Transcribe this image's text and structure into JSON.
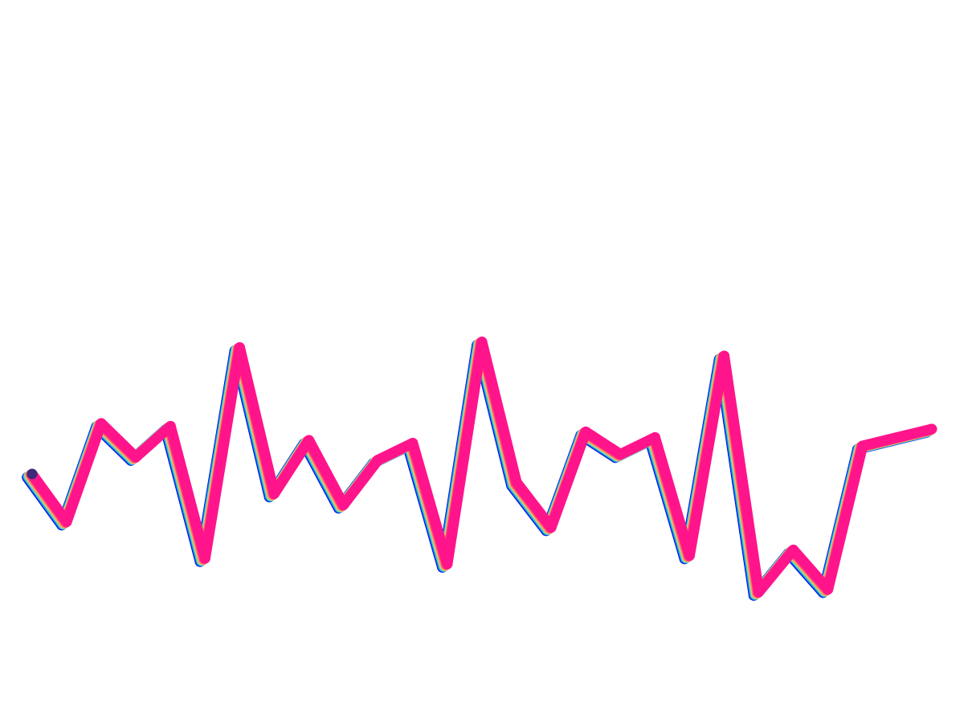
{
  "chart_data": {
    "type": "line",
    "title": "",
    "xlabel": "",
    "ylabel": "",
    "grid": false,
    "legend": "none",
    "axes_visible": false,
    "x": [
      0,
      1,
      2,
      3,
      4,
      5,
      6,
      7,
      8,
      9,
      10,
      11,
      12,
      13,
      14,
      15,
      16,
      17,
      18,
      19,
      20,
      21,
      22,
      23,
      24,
      25,
      26
    ],
    "series": [
      {
        "values": [
          40,
          23,
          58,
          46,
          57,
          10,
          85,
          33,
          52,
          29,
          45,
          51,
          8,
          87,
          37,
          21,
          55,
          47,
          53,
          11,
          82,
          -2,
          13,
          -1,
          50,
          53,
          56
        ]
      }
    ],
    "ylim": [
      -40,
      200
    ],
    "start_marker_color": "#3a2a78",
    "stroke_layers": [
      "#0000ff",
      "#0a7bd6",
      "#36c6c3",
      "#9ad6a0",
      "#f0b46e",
      "#ff7a60",
      "#ff3c78",
      "#ff148c"
    ]
  }
}
